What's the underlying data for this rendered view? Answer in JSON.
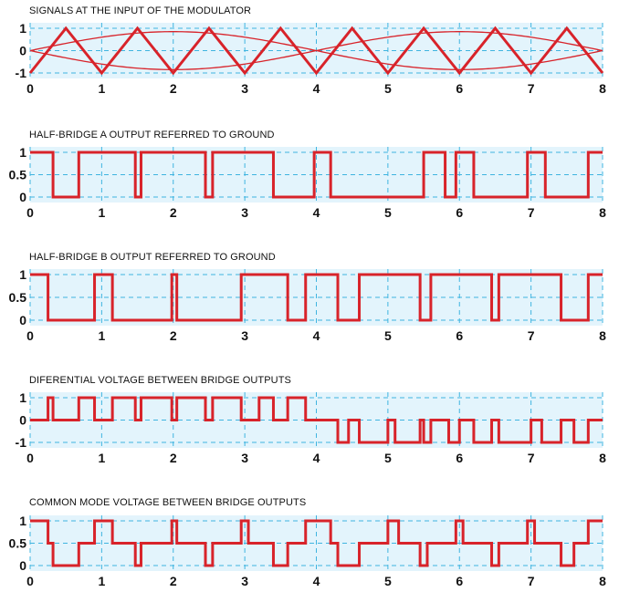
{
  "chart_data": [
    {
      "type": "line",
      "title": "SIGNALS AT THE INPUT OF THE MODULATOR",
      "xlim": [
        0,
        8
      ],
      "ylim": [
        -1,
        1
      ],
      "xticks": [
        "0",
        "1",
        "2",
        "3",
        "4",
        "5",
        "6",
        "7",
        "8"
      ],
      "yticks": [
        "1",
        "0",
        "-1"
      ],
      "yticks_values": [
        1,
        0,
        -1
      ],
      "grid": true,
      "colors": {
        "line": "#d8232a",
        "plot_bg": "#e3f4fc",
        "grid": "#3fb4e0"
      },
      "series": [
        {
          "kind": "triangle-carrier",
          "x": [
            0,
            0.5,
            1,
            1.5,
            2,
            2.5,
            3,
            3.5,
            4,
            4.5,
            5,
            5.5,
            6,
            6.5,
            7,
            7.5,
            8
          ],
          "y": [
            -1,
            1,
            -1,
            1,
            -1,
            1,
            -1,
            1,
            -1,
            1,
            -1,
            1,
            -1,
            1,
            -1,
            1,
            -1
          ]
        },
        {
          "kind": "sine-reference",
          "period": 8,
          "amplitude": 0.85,
          "phase": "sine"
        },
        {
          "kind": "sine-reference-inverted",
          "period": 8,
          "amplitude": 0.85,
          "phase": "negative-sine"
        }
      ]
    },
    {
      "type": "line",
      "title": "HALF-BRIDGE A OUTPUT REFERRED TO GROUND",
      "xlim": [
        0,
        8
      ],
      "ylim": [
        0,
        1
      ],
      "xticks": [
        "0",
        "1",
        "2",
        "3",
        "4",
        "5",
        "6",
        "7",
        "8"
      ],
      "yticks": [
        "1",
        "0.5",
        "0"
      ],
      "yticks_values": [
        1,
        0.5,
        0
      ],
      "grid": true,
      "colors": {
        "line": "#d8232a",
        "plot_bg": "#e3f4fc",
        "grid": "#3fb4e0"
      },
      "series": [
        {
          "kind": "step",
          "x": [
            0,
            0.32,
            0.68,
            1.47,
            1.55,
            2.45,
            2.55,
            3.4,
            3.97,
            4.2,
            5.5,
            5.8,
            5.95,
            6.2,
            6.95,
            7.2,
            7.8,
            8
          ],
          "y": [
            1,
            0,
            1,
            0,
            1,
            0,
            1,
            0,
            1,
            0,
            1,
            0,
            1,
            0,
            1,
            0,
            1,
            1
          ]
        }
      ]
    },
    {
      "type": "line",
      "title": "HALF-BRIDGE B OUTPUT REFERRED TO GROUND",
      "xlim": [
        0,
        8
      ],
      "ylim": [
        0,
        1
      ],
      "xticks": [
        "0",
        "1",
        "2",
        "3",
        "4",
        "5",
        "6",
        "7",
        "8"
      ],
      "yticks": [
        "1",
        "0.5",
        "0"
      ],
      "yticks_values": [
        1,
        0.5,
        0
      ],
      "grid": true,
      "colors": {
        "line": "#d8232a",
        "plot_bg": "#e3f4fc",
        "grid": "#3fb4e0"
      },
      "series": [
        {
          "kind": "step",
          "x": [
            0,
            0.25,
            0.9,
            1.15,
            1.98,
            2.05,
            2.95,
            3.6,
            3.85,
            4.3,
            4.6,
            5.45,
            5.6,
            6.45,
            6.55,
            7.42,
            7.8,
            8
          ],
          "y": [
            1,
            0,
            1,
            0,
            1,
            0,
            1,
            0,
            1,
            0,
            1,
            0,
            1,
            0,
            1,
            0,
            1,
            1
          ]
        }
      ]
    },
    {
      "type": "line",
      "title": "DIFERENTIAL VOLTAGE BETWEEN BRIDGE OUTPUTS",
      "xlim": [
        0,
        8
      ],
      "ylim": [
        -1,
        1
      ],
      "xticks": [
        "0",
        "1",
        "2",
        "3",
        "4",
        "5",
        "6",
        "7",
        "8"
      ],
      "yticks": [
        "1",
        "0",
        "-1"
      ],
      "yticks_values": [
        1,
        0,
        -1
      ],
      "grid": true,
      "colors": {
        "line": "#d8232a",
        "plot_bg": "#e3f4fc",
        "grid": "#3fb4e0"
      },
      "series": [
        {
          "kind": "step",
          "x": [
            0,
            0.25,
            0.32,
            0.68,
            0.9,
            1.15,
            1.47,
            1.55,
            1.98,
            2.05,
            2.45,
            2.55,
            2.95,
            3.2,
            3.4,
            3.6,
            3.85,
            4.3,
            4.45,
            4.6,
            5,
            5.1,
            5.45,
            5.5,
            5.6,
            5.85,
            6,
            6.2,
            6.45,
            6.55,
            7,
            7.15,
            7.42,
            7.6,
            7.8,
            8
          ],
          "y": [
            0,
            1,
            0,
            1,
            0,
            1,
            0,
            1,
            0,
            1,
            0,
            1,
            0,
            1,
            0,
            1,
            0,
            -1,
            0,
            -1,
            0,
            -1,
            0,
            -1,
            0,
            -1,
            0,
            -1,
            0,
            -1,
            0,
            -1,
            0,
            -1,
            0,
            0
          ]
        }
      ]
    },
    {
      "type": "line",
      "title": "COMMON MODE VOLTAGE BETWEEN BRIDGE OUTPUTS",
      "xlim": [
        0,
        8
      ],
      "ylim": [
        0,
        1
      ],
      "xticks": [
        "0",
        "1",
        "2",
        "3",
        "4",
        "5",
        "6",
        "7",
        "8"
      ],
      "yticks": [
        "1",
        "0.5",
        "0"
      ],
      "yticks_values": [
        1,
        0.5,
        0
      ],
      "grid": true,
      "colors": {
        "line": "#d8232a",
        "plot_bg": "#e3f4fc",
        "grid": "#3fb4e0"
      },
      "series": [
        {
          "kind": "step",
          "x": [
            0,
            0.25,
            0.32,
            0.68,
            0.9,
            1.15,
            1.47,
            1.55,
            1.98,
            2.05,
            2.45,
            2.55,
            2.95,
            3.05,
            3.4,
            3.6,
            3.85,
            4.2,
            4.3,
            4.6,
            5,
            5.15,
            5.45,
            5.55,
            5.95,
            6.05,
            6.45,
            6.55,
            6.95,
            7.05,
            7.42,
            7.6,
            7.8,
            8
          ],
          "y": [
            1,
            0.5,
            0,
            0.5,
            1,
            0.5,
            0,
            0.5,
            1,
            0.5,
            0,
            0.5,
            1,
            0.5,
            0,
            0.5,
            1,
            0.5,
            0,
            0.5,
            1,
            0.5,
            0,
            0.5,
            1,
            0.5,
            0,
            0.5,
            1,
            0.5,
            0,
            0.5,
            1,
            1
          ]
        }
      ]
    }
  ]
}
